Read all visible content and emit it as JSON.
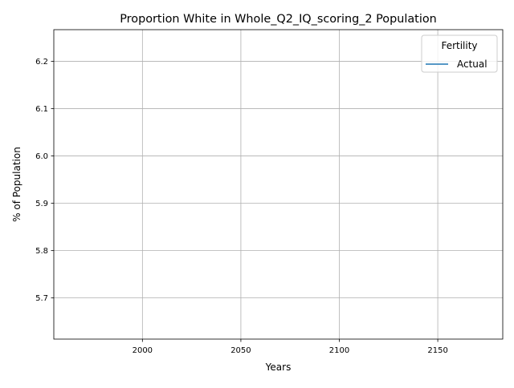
{
  "chart_data": {
    "type": "line",
    "title": "Proportion White in Whole_Q2_IQ_scoring_2 Population",
    "xlabel": "Years",
    "ylabel": "% of Population",
    "xlim": [
      1955,
      2183
    ],
    "ylim": [
      5.613,
      6.267
    ],
    "xticks": [
      "2000",
      "2050",
      "2100",
      "2150"
    ],
    "xtick_values": [
      2000,
      2050,
      2100,
      2150
    ],
    "yticks": [
      "5.7",
      "5.8",
      "5.9",
      "6.0",
      "6.1",
      "6.2"
    ],
    "ytick_values": [
      5.7,
      5.8,
      5.9,
      6.0,
      6.1,
      6.2
    ],
    "grid": true,
    "legend": {
      "title": "Fertility",
      "placement": "top-right",
      "entries": [
        "Actual"
      ]
    },
    "series": [
      {
        "name": "Actual",
        "color": "#1f77b4",
        "x": [],
        "y": []
      }
    ]
  }
}
